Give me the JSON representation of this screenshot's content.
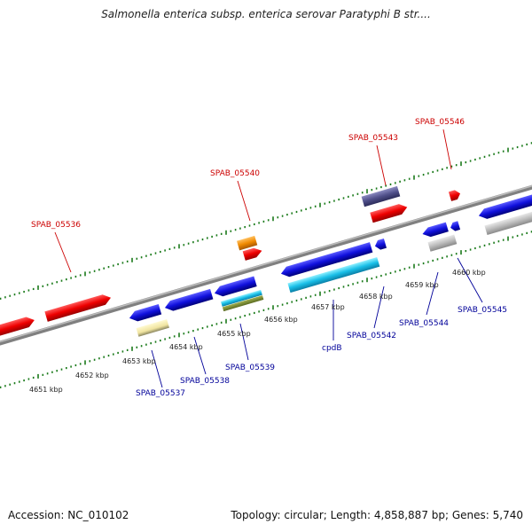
{
  "title": "Salmonella enterica subsp. enterica serovar Paratyphi B str....",
  "footer": {
    "accession": "Accession: NC_010102",
    "stats": "Topology: circular; Length: 4,858,887 bp; Genes: 5,740"
  },
  "ticks": [
    "4651 kbp",
    "4652 kbp",
    "4653 kbp",
    "4654 kbp",
    "4655 kbp",
    "4656 kbp",
    "4657 kbp",
    "4658 kbp",
    "4659 kbp",
    "4660 kbp"
  ],
  "labels": {
    "forward": [
      "SPAB_05536",
      "SPAB_05540",
      "SPAB_05543",
      "SPAB_05546"
    ],
    "reverse": [
      "SPAB_05537",
      "SPAB_05538",
      "SPAB_05539",
      "cpdB",
      "SPAB_05542",
      "SPAB_05544",
      "SPAB_05545"
    ]
  },
  "colors": {
    "forward_label": "#cc0000",
    "reverse_label": "#000099",
    "backbone": "#808080",
    "tick": "#1a7a1a"
  }
}
